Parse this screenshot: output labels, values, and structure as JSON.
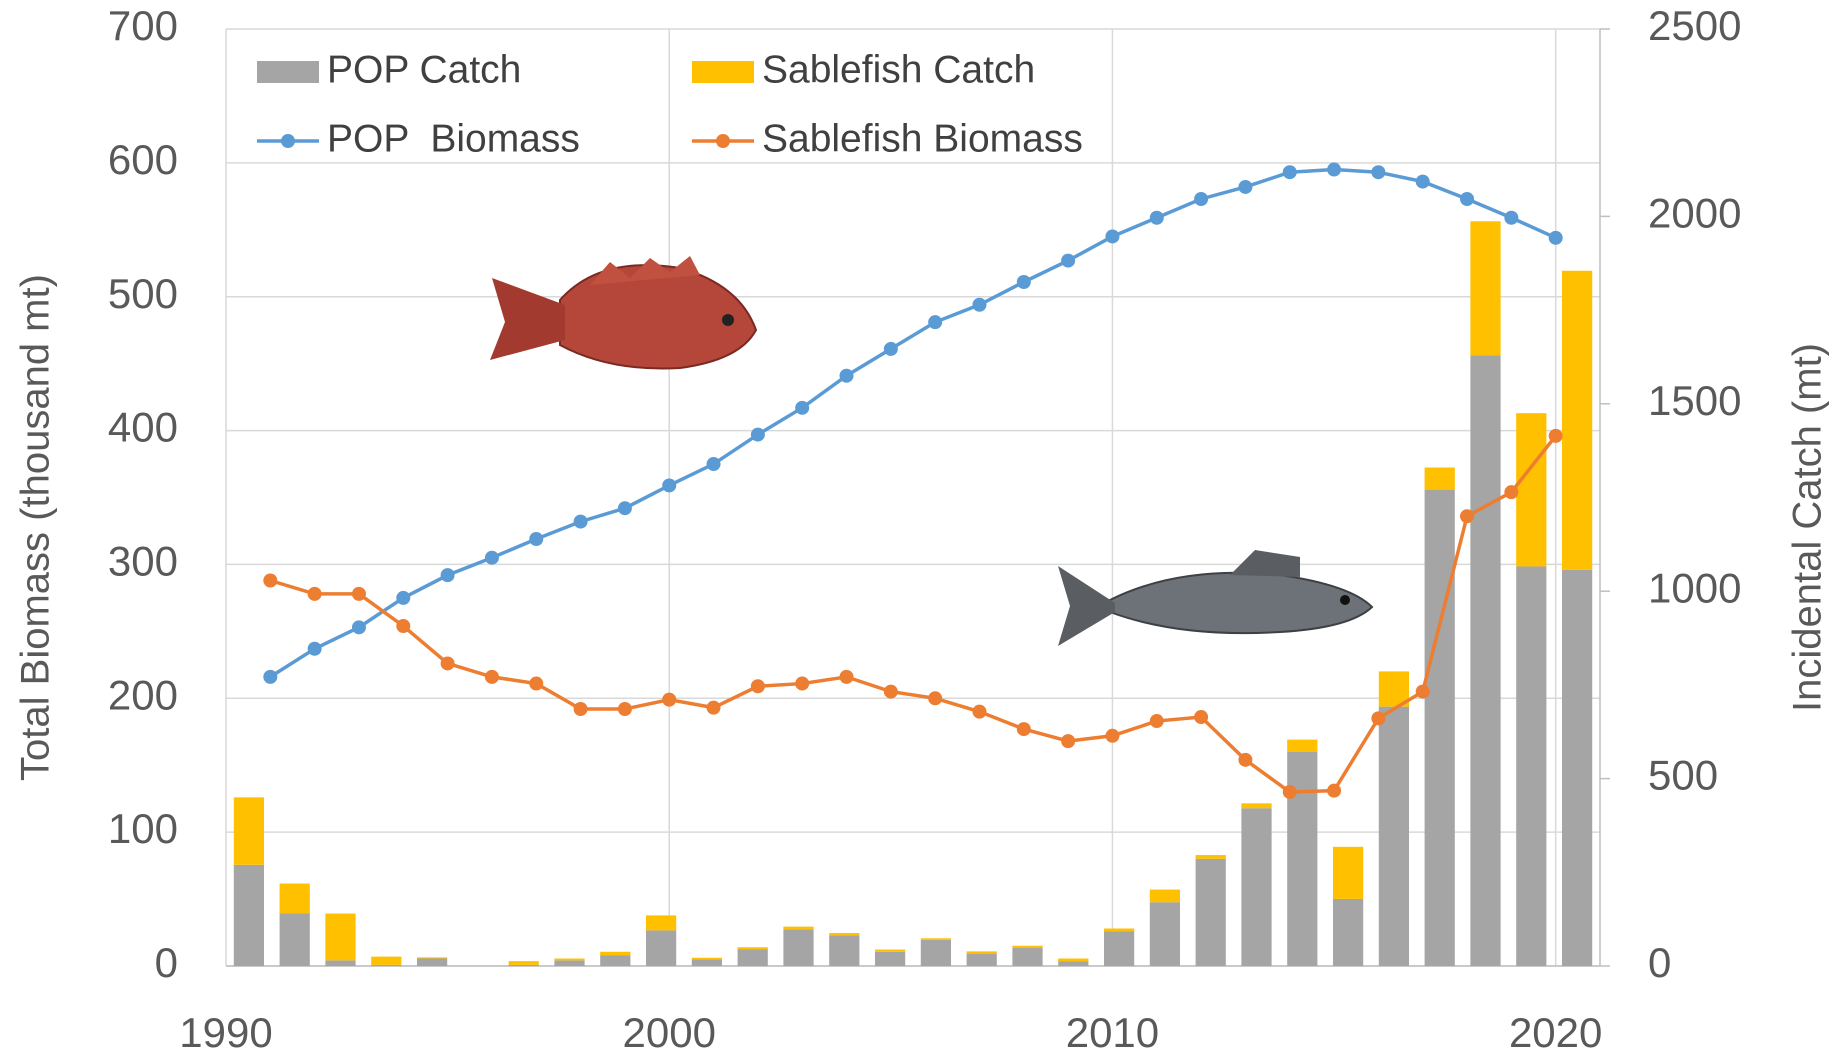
{
  "chart_data": {
    "type": "combo",
    "x": [
      1991,
      1992,
      1993,
      1994,
      1995,
      1996,
      1997,
      1998,
      1999,
      2000,
      2001,
      2002,
      2003,
      2004,
      2005,
      2006,
      2007,
      2008,
      2009,
      2010,
      2011,
      2012,
      2013,
      2014,
      2015,
      2016,
      2017,
      2018,
      2019,
      2020
    ],
    "xlim": [
      1990,
      2021
    ],
    "xticks": [
      1990,
      2000,
      2010,
      2020
    ],
    "ylim": [
      0,
      700
    ],
    "yticks": [
      0,
      100,
      200,
      300,
      400,
      500,
      600,
      700
    ],
    "y2lim": [
      0,
      2500
    ],
    "y2ticks": [
      0,
      500,
      1000,
      1500,
      2000,
      2500
    ],
    "ylabel": "Total Biomass (thousand  mt)",
    "y2label": "Incidental Catch (mt)",
    "grid": true,
    "series": [
      {
        "name": "POP Catch",
        "kind": "bar",
        "axis": "y2",
        "color": "#a5a5a5",
        "values": [
          270,
          140,
          15,
          3,
          20,
          0,
          3,
          15,
          28,
          95,
          18,
          45,
          98,
          82,
          38,
          70,
          32,
          48,
          12,
          92,
          170,
          286,
          421,
          572,
          179,
          692,
          1270,
          1629,
          1066,
          1057
        ]
      },
      {
        "name": "Sablefish Catch",
        "kind": "bar",
        "axis": "y2",
        "color": "#ffc000",
        "values": [
          180,
          80,
          125,
          22,
          3,
          0,
          10,
          5,
          10,
          40,
          4,
          5,
          7,
          6,
          6,
          4,
          7,
          6,
          8,
          8,
          34,
          10,
          13,
          32,
          139,
          94,
          60,
          358,
          409,
          798
        ]
      },
      {
        "name": "POP  Biomass",
        "kind": "line",
        "color": "#5b9bd5",
        "values": [
          216,
          237,
          253,
          275,
          292,
          305,
          319,
          332,
          342,
          359,
          375,
          397,
          417,
          441,
          461,
          481,
          494,
          511,
          527,
          545,
          559,
          573,
          582,
          593,
          595,
          593,
          586,
          573,
          559,
          544
        ]
      },
      {
        "name": "Sablefish Biomass",
        "kind": "line",
        "color": "#ed7d31",
        "values": [
          288,
          278,
          278,
          254,
          226,
          216,
          211,
          192,
          192,
          199,
          193,
          209,
          211,
          216,
          205,
          200,
          190,
          177,
          168,
          172,
          183,
          186,
          154,
          130,
          131,
          185,
          205,
          336,
          354,
          396
        ]
      }
    ]
  }
}
